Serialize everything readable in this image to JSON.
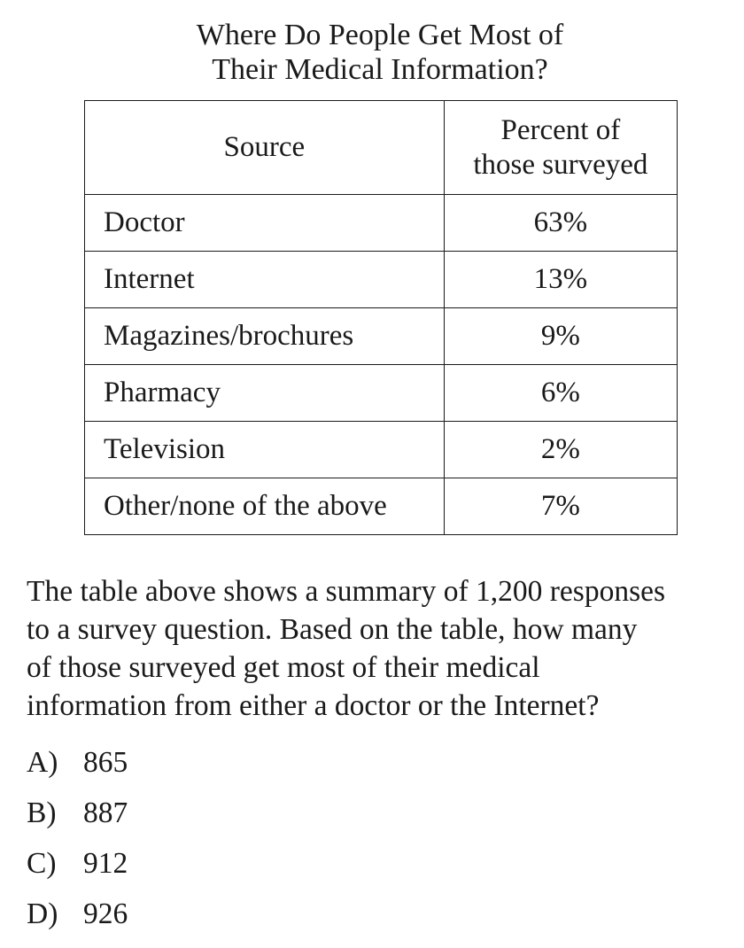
{
  "title": {
    "line1": "Where Do People Get Most of",
    "line2": "Their Medical Information?"
  },
  "table": {
    "headers": {
      "source": "Source",
      "percent_line1": "Percent of",
      "percent_line2": "those surveyed"
    },
    "rows": [
      {
        "source": "Doctor",
        "percent": "63%"
      },
      {
        "source": "Internet",
        "percent": "13%"
      },
      {
        "source": "Magazines/brochures",
        "percent": "9%"
      },
      {
        "source": "Pharmacy",
        "percent": "6%"
      },
      {
        "source": "Television",
        "percent": "2%"
      },
      {
        "source": "Other/none of the above",
        "percent": "7%"
      }
    ]
  },
  "question": {
    "line1": "The table above shows a summary of 1,200 responses",
    "line2": "to a survey question.  Based on the table, how many",
    "line3": "of those surveyed get most of their medical",
    "line4": "information from either a doctor or the Internet?"
  },
  "choices": [
    {
      "letter": "A)",
      "value": "865"
    },
    {
      "letter": "B)",
      "value": "887"
    },
    {
      "letter": "C)",
      "value": "912"
    },
    {
      "letter": "D)",
      "value": "926"
    }
  ]
}
